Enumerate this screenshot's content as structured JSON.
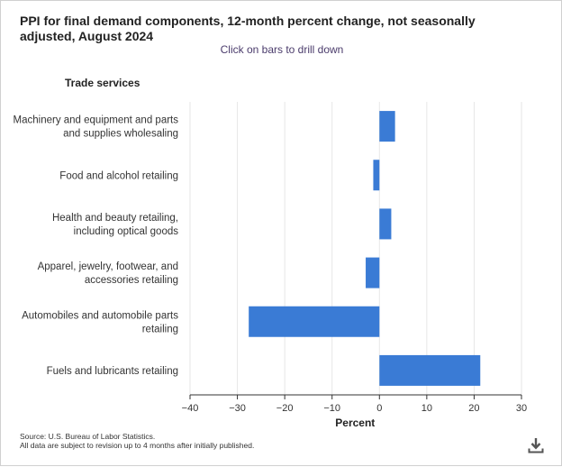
{
  "title": "PPI for final demand components, 12-month percent change, not seasonally adjusted, August 2024",
  "subtitle": "Click on bars to drill down",
  "group_label": "Trade services",
  "source_line1": "Source: U.S. Bureau of Labor Statistics.",
  "source_line2": "All data are subject to revision up to 4 months after initially published.",
  "download_icon": "download-icon",
  "colors": {
    "bar": "#3a7bd5",
    "grid": "#e6e6e6",
    "axis": "#333333"
  },
  "chart_data": {
    "type": "bar",
    "orientation": "horizontal",
    "categories": [
      [
        "Machinery and equipment and parts",
        "and supplies wholesaling"
      ],
      [
        "Food and alcohol retailing"
      ],
      [
        "Health and beauty retailing,",
        "including optical goods"
      ],
      [
        "Apparel, jewelry, footwear, and",
        "accessories retailing"
      ],
      [
        "Automobiles and automobile parts",
        "retailing"
      ],
      [
        "Fuels and lubricants retailing"
      ]
    ],
    "values": [
      3.3,
      -1.3,
      2.5,
      -2.9,
      -27.6,
      21.3
    ],
    "xlabel": "Percent",
    "xlim": [
      -40,
      30
    ],
    "xticks": [
      -40,
      -30,
      -20,
      -10,
      0,
      10,
      20,
      30
    ],
    "xtick_labels": [
      "−40",
      "−30",
      "−20",
      "−10",
      "0",
      "10",
      "20",
      "30"
    ],
    "grid": true
  }
}
